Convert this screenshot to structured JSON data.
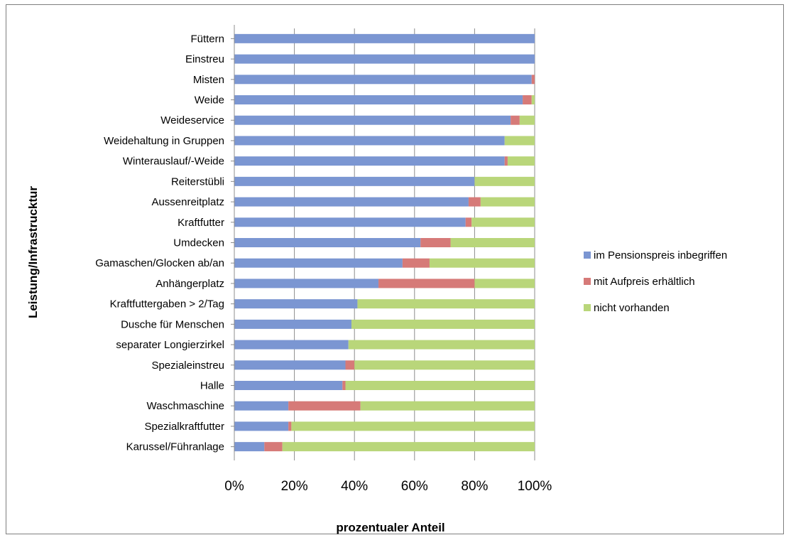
{
  "chart_data": {
    "type": "bar",
    "stacked": "percent",
    "orientation": "horizontal",
    "title": "",
    "xlabel": "prozentualer Anteil",
    "ylabel": "Leistung/Infrastrucktur",
    "xlim": [
      0,
      100
    ],
    "xticks": [
      "0%",
      "20%",
      "40%",
      "60%",
      "80%",
      "100%"
    ],
    "grid": "vertical",
    "legend_position": "right",
    "categories": [
      "Füttern",
      "Einstreu",
      "Misten",
      "Weide",
      "Weideservice",
      "Weidehaltung in Gruppen",
      "Winterauslauf/-Weide",
      "Reiterstübli",
      "Aussenreitplatz",
      "Kraftfutter",
      "Umdecken",
      "Gamaschen/Glocken ab/an",
      "Anhängerplatz",
      "Kraftfuttergaben > 2/Tag",
      "Dusche für Menschen",
      "separater Longierzirkel",
      "Spezialeinstreu",
      "Halle",
      "Waschmaschine",
      "Spezialkraftfutter",
      "Karussel/Führanlage"
    ],
    "series": [
      {
        "name": "im Pensionspreis inbegriffen",
        "color": "#7b96d2",
        "values": [
          100,
          100,
          99,
          96,
          92,
          90,
          90,
          80,
          78,
          77,
          62,
          56,
          48,
          41,
          39,
          38,
          37,
          36,
          18,
          18,
          10
        ]
      },
      {
        "name": "mit Aufpreis erhältlich",
        "color": "#d67a78",
        "values": [
          0,
          0,
          1,
          3,
          3,
          0,
          1,
          0,
          4,
          2,
          10,
          9,
          32,
          0,
          0,
          0,
          3,
          1,
          24,
          1,
          6
        ]
      },
      {
        "name": "nicht vorhanden",
        "color": "#b9d67a",
        "values": [
          0,
          0,
          0,
          1,
          5,
          10,
          9,
          20,
          18,
          21,
          28,
          35,
          20,
          59,
          61,
          62,
          60,
          63,
          58,
          81,
          84
        ]
      }
    ]
  }
}
